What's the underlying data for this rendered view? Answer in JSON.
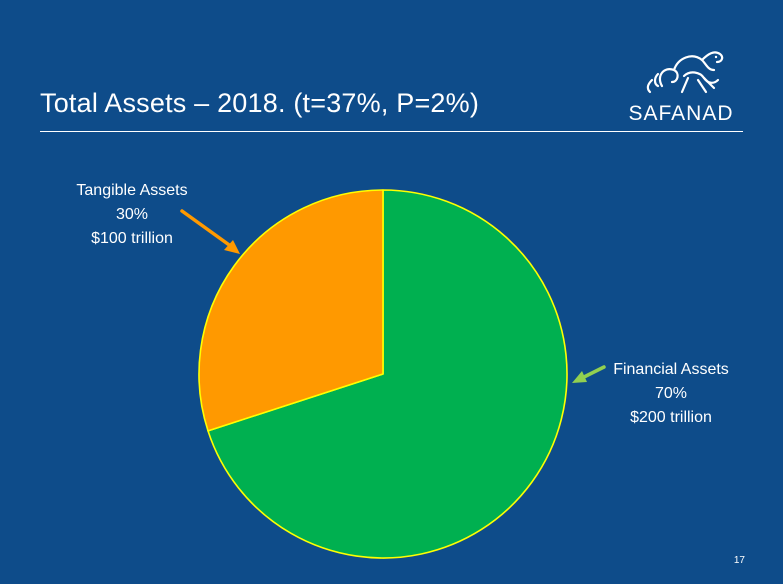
{
  "slide": {
    "title": "Total Assets – 2018. (t=37%, P=2%)",
    "logo_text": "SAFANAD",
    "page_number": "17"
  },
  "colors": {
    "background": "#0e4c8a",
    "tangible": "#ff9900",
    "financial": "#00b050",
    "slice_border": "#ffff00",
    "tangible_arrow": "#ff9900",
    "financial_arrow": "#92d050"
  },
  "chart_data": {
    "type": "pie",
    "title": "Total Assets – 2018. (t=37%, P=2%)",
    "series": [
      {
        "name": "Total Assets",
        "slices": [
          {
            "label": "Tangible Assets",
            "percent": "30%",
            "value_text": "$100 trillion",
            "fraction": 0.3
          },
          {
            "label": "Financial Assets",
            "percent": "70%",
            "value_text": "$200 trillion",
            "fraction": 0.7
          }
        ]
      }
    ],
    "legend": "none"
  }
}
